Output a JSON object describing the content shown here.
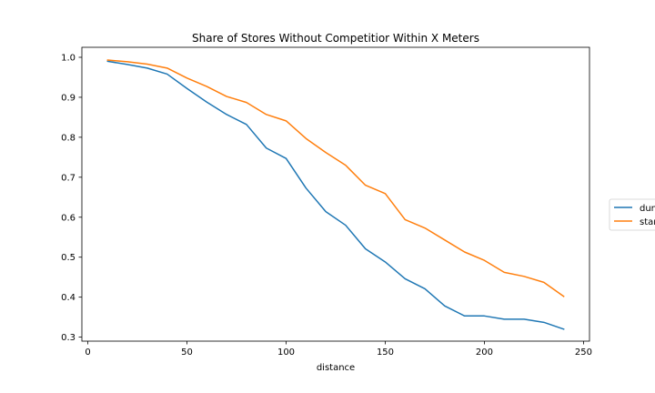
{
  "chart_data": {
    "type": "line",
    "title": "Share of Stores Without Competitior Within X Meters",
    "xlabel": "distance",
    "ylabel": "",
    "xlim": [
      -3,
      253
    ],
    "ylim": [
      0.29,
      1.025
    ],
    "xticks": [
      0,
      50,
      100,
      150,
      200,
      250
    ],
    "yticks": [
      0.3,
      0.4,
      0.5,
      0.6,
      0.7,
      0.8,
      0.9,
      1.0
    ],
    "ytick_labels": [
      "0.3",
      "0.4",
      "0.5",
      "0.6",
      "0.7",
      "0.8",
      "0.9",
      "1.0"
    ],
    "grid": false,
    "legend_position": "center-right, outside plot area (clipped)",
    "x": [
      10,
      20,
      30,
      40,
      50,
      60,
      70,
      80,
      90,
      100,
      110,
      120,
      130,
      140,
      150,
      160,
      170,
      180,
      190,
      200,
      210,
      220,
      230,
      240
    ],
    "series": [
      {
        "name": "dun",
        "legend_label": "dun",
        "color": "#1f77b4",
        "values": [
          0.99,
          0.982,
          0.973,
          0.958,
          0.922,
          0.888,
          0.857,
          0.832,
          0.773,
          0.747,
          0.673,
          0.614,
          0.58,
          0.521,
          0.488,
          0.446,
          0.421,
          0.378,
          0.353,
          0.353,
          0.345,
          0.345,
          0.337,
          0.32
        ]
      },
      {
        "name": "star",
        "legend_label": "star",
        "color": "#ff7f0e",
        "values": [
          0.993,
          0.989,
          0.983,
          0.973,
          0.948,
          0.927,
          0.902,
          0.887,
          0.857,
          0.841,
          0.797,
          0.762,
          0.73,
          0.68,
          0.659,
          0.594,
          0.573,
          0.543,
          0.513,
          0.492,
          0.462,
          0.452,
          0.437,
          0.402
        ]
      }
    ]
  }
}
